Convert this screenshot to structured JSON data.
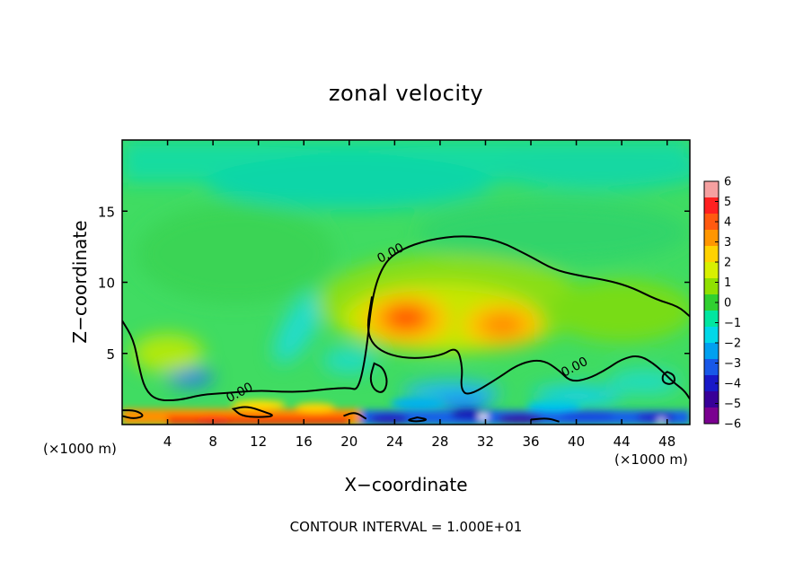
{
  "chart_data": {
    "type": "heatmap",
    "title": "zonal velocity",
    "xlabel": "X−coordinate",
    "ylabel": "Z−coordinate",
    "x_unit_left": "(×1000 m)",
    "x_unit_right": "(×1000 m)",
    "xlim": [
      0,
      50
    ],
    "ylim": [
      0,
      20
    ],
    "xticks": [
      4,
      8,
      12,
      16,
      20,
      24,
      28,
      32,
      36,
      40,
      44,
      48
    ],
    "yticks": [
      5,
      10,
      15
    ],
    "colorbar": {
      "levels": [
        6,
        5,
        4,
        3,
        2,
        1,
        0,
        -1,
        -2,
        -3,
        -4,
        -5,
        -6
      ],
      "labels": [
        "6",
        "5",
        "4",
        "3",
        "2",
        "1",
        "0",
        "−1",
        "−2",
        "−3",
        "−4",
        "−5",
        "−6"
      ],
      "colors": [
        "#f5a0a0",
        "#ff2020",
        "#ff5a10",
        "#ff9600",
        "#ffd200",
        "#d8f000",
        "#90e000",
        "#30d030",
        "#00e6a0",
        "#00d8e8",
        "#00a0f0",
        "#1858e8",
        "#1818c8",
        "#380098",
        "#7a0090"
      ]
    },
    "contour_label": "0.00",
    "footer": "CONTOUR INTERVAL = 1.000E+01",
    "annotations": [
      {
        "text": "0.00",
        "x": 10.5,
        "z": 2.0
      },
      {
        "text": "0.00",
        "x": 23.8,
        "z": 11.8
      },
      {
        "text": "0.00",
        "x": 40.0,
        "z": 3.8
      }
    ],
    "features": [
      {
        "kind": "jet_maximum",
        "x": 25,
        "z": 7.5,
        "value": 4.5
      },
      {
        "kind": "jet_maximum",
        "x": 33,
        "z": 7.0,
        "value": 3.0
      },
      {
        "kind": "zero_contour",
        "points": [
          [
            0,
            7.3
          ],
          [
            1,
            6.0
          ],
          [
            1.5,
            4.0
          ],
          [
            2,
            2.5
          ],
          [
            3,
            1.7
          ],
          [
            5,
            1.7
          ],
          [
            7,
            2.1
          ],
          [
            9,
            2.2
          ],
          [
            12,
            2.4
          ],
          [
            14,
            2.3
          ],
          [
            16,
            2.3
          ],
          [
            18,
            2.5
          ],
          [
            20,
            2.6
          ],
          [
            20.8,
            2.4
          ],
          [
            21.5,
            5.0
          ],
          [
            22,
            9.0
          ],
          [
            23,
            11.3
          ],
          [
            24.5,
            12.3
          ],
          [
            27,
            13.0
          ],
          [
            30,
            13.3
          ],
          [
            33,
            13.0
          ],
          [
            36,
            11.8
          ],
          [
            38,
            10.9
          ],
          [
            40,
            10.5
          ],
          [
            43,
            10.1
          ],
          [
            45,
            9.6
          ],
          [
            47,
            8.8
          ],
          [
            49,
            8.3
          ],
          [
            50,
            7.6
          ]
        ]
      }
    ]
  }
}
